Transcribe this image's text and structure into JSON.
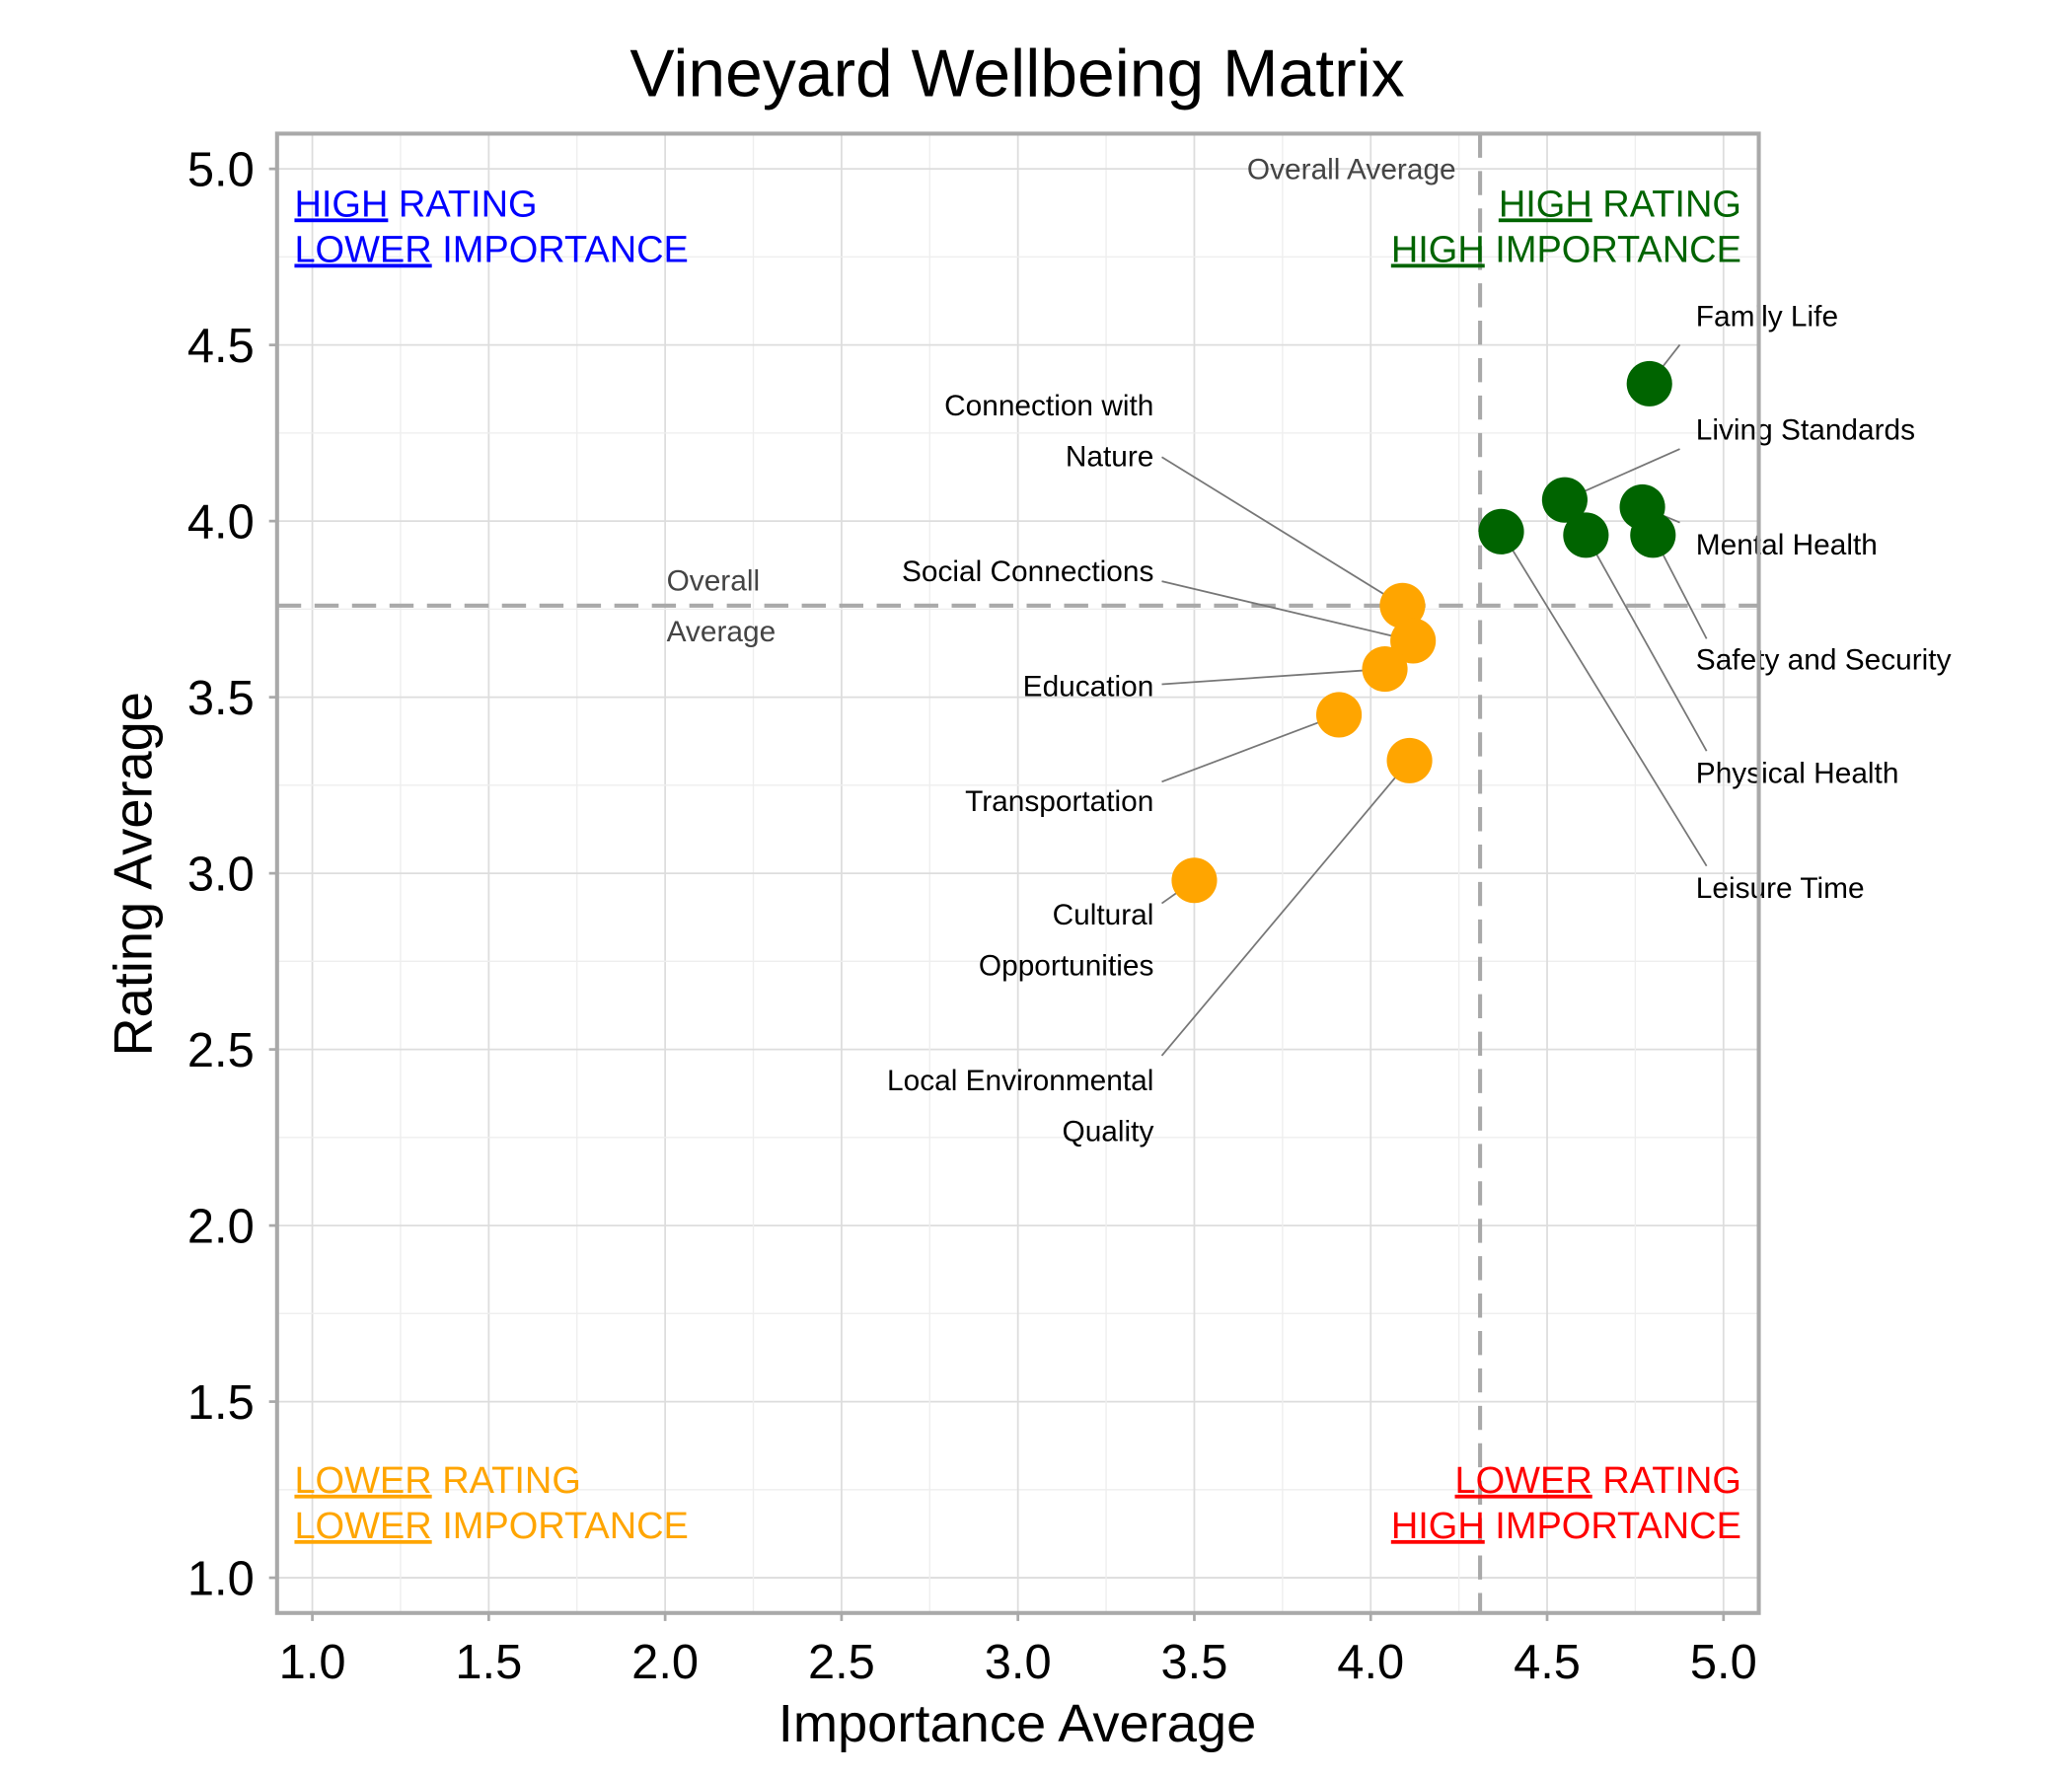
{
  "chart_data": {
    "type": "scatter",
    "title": "Vineyard Wellbeing Matrix",
    "xlabel": "Importance Average",
    "ylabel": "Rating Average",
    "xlim": [
      0.9,
      5.1
    ],
    "ylim": [
      0.9,
      5.1
    ],
    "xticks": [
      "1.0",
      "1.5",
      "2.0",
      "2.5",
      "3.0",
      "3.5",
      "4.0",
      "4.5",
      "5.0"
    ],
    "yticks": [
      "1.0",
      "1.5",
      "2.0",
      "2.5",
      "3.0",
      "3.5",
      "4.0",
      "4.5",
      "5.0"
    ],
    "grid": true,
    "reference_lines": {
      "x": 4.31,
      "y": 3.76,
      "x_label": "Overall Average",
      "y_label_lines": [
        "Overall",
        "Average"
      ]
    },
    "colors": {
      "high": "#006400",
      "low": "#FFA500",
      "ref": "#A9A9A9"
    },
    "points": [
      {
        "label": "Family Life",
        "x": 4.79,
        "y": 4.39,
        "group": "high"
      },
      {
        "label": "Living Standards",
        "x": 4.55,
        "y": 4.06,
        "group": "high"
      },
      {
        "label": "Mental Health",
        "x": 4.77,
        "y": 4.04,
        "group": "high"
      },
      {
        "label": "Safety and Security",
        "x": 4.8,
        "y": 3.96,
        "group": "high"
      },
      {
        "label": "Physical Health",
        "x": 4.61,
        "y": 3.96,
        "group": "high"
      },
      {
        "label": "Leisure Time",
        "x": 4.37,
        "y": 3.97,
        "group": "high"
      },
      {
        "label": "Connection with Nature",
        "label_lines": [
          "Connection with",
          "Nature"
        ],
        "x": 4.09,
        "y": 3.76,
        "group": "low"
      },
      {
        "label": "Social Connections",
        "x": 4.12,
        "y": 3.66,
        "group": "low"
      },
      {
        "label": "Education",
        "x": 4.04,
        "y": 3.58,
        "group": "low"
      },
      {
        "label": "Transportation",
        "x": 3.91,
        "y": 3.45,
        "group": "low"
      },
      {
        "label": "Local Environmental Quality",
        "label_lines": [
          "Local Environmental",
          "Quality"
        ],
        "x": 4.11,
        "y": 3.32,
        "group": "low"
      },
      {
        "label": "Cultural Opportunities",
        "label_lines": [
          "Cultural",
          "Opportunities"
        ],
        "x": 3.5,
        "y": 2.98,
        "group": "low"
      }
    ],
    "quadrants": [
      {
        "pos": "top-left",
        "color": "#0000FF",
        "lines": [
          [
            "HIGH",
            " RATING"
          ],
          [
            "LOWER",
            " IMPORTANCE"
          ]
        ]
      },
      {
        "pos": "top-right",
        "color": "#006400",
        "lines": [
          [
            "HIGH",
            " RATING"
          ],
          [
            "HIGH",
            " IMPORTANCE"
          ]
        ]
      },
      {
        "pos": "bottom-left",
        "color": "#FFA500",
        "lines": [
          [
            "LOWER",
            " RATING"
          ],
          [
            "LOWER",
            " IMPORTANCE"
          ]
        ]
      },
      {
        "pos": "bottom-right",
        "color": "#FF0000",
        "lines": [
          [
            "LOWER",
            " RATING"
          ],
          [
            "HIGH",
            " IMPORTANCE"
          ]
        ]
      }
    ]
  }
}
